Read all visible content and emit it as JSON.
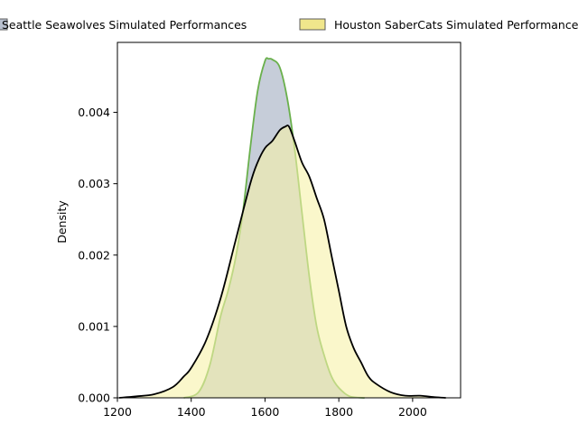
{
  "chart_data": {
    "type": "area",
    "title": "",
    "xlabel": "",
    "ylabel": "Density",
    "xlim": [
      1200,
      2130
    ],
    "ylim": [
      0,
      0.00498
    ],
    "x_ticks": [
      1200,
      1400,
      1600,
      1800,
      2000
    ],
    "y_ticks": [
      0.0,
      0.001,
      0.002,
      0.003,
      0.004
    ],
    "x_tick_labels": [
      "1200",
      "1400",
      "1600",
      "1800",
      "2000"
    ],
    "y_tick_labels": [
      "0.000",
      "0.001",
      "0.002",
      "0.003",
      "0.004"
    ],
    "grid": false,
    "legend_position": "top, outside plot, two columns",
    "legend": [
      {
        "label": "Seattle Seawolves Simulated Performances",
        "color": "#b8c0cf",
        "edge": "#5c5c5c"
      },
      {
        "label": "Houston SaberCats Simulated Performances",
        "color": "#f0e68c",
        "edge": "#5c5c5c"
      }
    ],
    "series": [
      {
        "name": "Seattle Seawolves Simulated Performances",
        "fill": "#b8c0cf",
        "fill_opacity": 0.8,
        "line_color": "#6ab04c",
        "x": [
          1380,
          1420,
          1450,
          1480,
          1500,
          1520,
          1540,
          1560,
          1580,
          1600,
          1610,
          1620,
          1640,
          1660,
          1680,
          1700,
          1720,
          1740,
          1760,
          1780,
          1800,
          1830,
          1870
        ],
        "y": [
          0.0,
          8e-05,
          0.00045,
          0.00115,
          0.0015,
          0.00195,
          0.0026,
          0.0035,
          0.0043,
          0.00472,
          0.00475,
          0.00474,
          0.00463,
          0.0042,
          0.0035,
          0.0026,
          0.0017,
          0.001,
          0.0006,
          0.0003,
          0.00014,
          2e-05,
          0.0
        ]
      },
      {
        "name": "Houston SaberCats Simulated Performances",
        "fill": "#f7f2a8",
        "fill_opacity": 0.6,
        "line_color": "#000000",
        "x": [
          1205,
          1250,
          1300,
          1350,
          1380,
          1400,
          1440,
          1480,
          1520,
          1560,
          1580,
          1600,
          1620,
          1640,
          1655,
          1665,
          1680,
          1700,
          1720,
          1740,
          1760,
          1780,
          1800,
          1820,
          1840,
          1860,
          1880,
          1900,
          1940,
          1980,
          2020,
          2060,
          2090
        ],
        "y": [
          0.0,
          2e-05,
          5e-05,
          0.00015,
          0.0003,
          0.00042,
          0.0008,
          0.0014,
          0.0022,
          0.003,
          0.0033,
          0.0035,
          0.0036,
          0.00375,
          0.0038,
          0.0038,
          0.0036,
          0.0033,
          0.0031,
          0.0028,
          0.0025,
          0.002,
          0.0015,
          0.001,
          0.0007,
          0.0005,
          0.0003,
          0.0002,
          8e-05,
          3e-05,
          3e-05,
          1e-05,
          0.0
        ]
      }
    ]
  }
}
